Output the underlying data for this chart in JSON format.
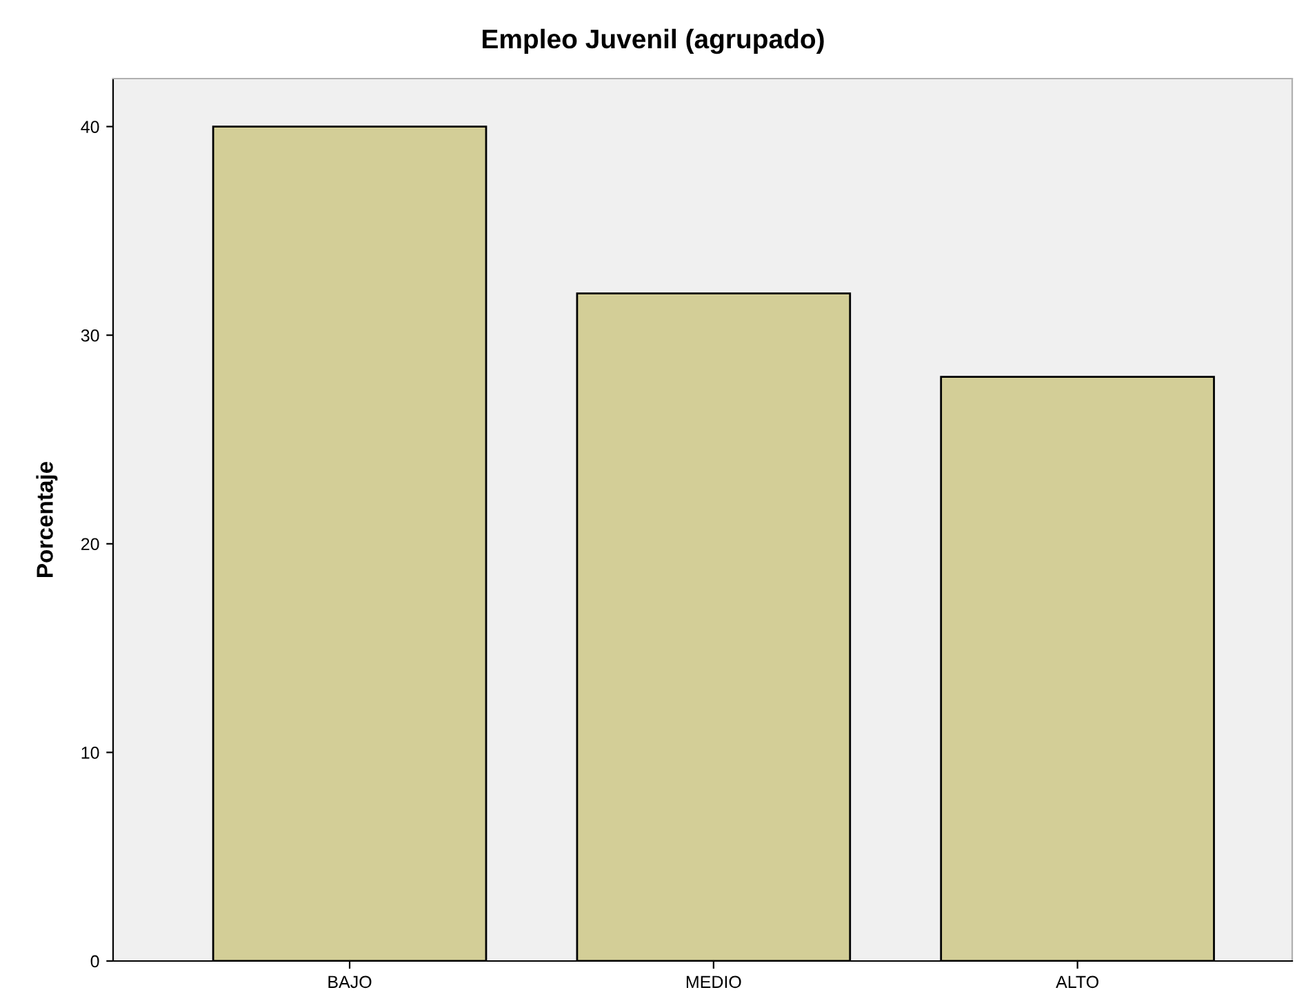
{
  "chart_data": {
    "type": "bar",
    "title": "Empleo Juvenil (agrupado)",
    "ylabel": "Porcentaje",
    "categories": [
      "BAJO",
      "MEDIO",
      "ALTO"
    ],
    "values": [
      40,
      32,
      28
    ],
    "color": "#d3ce97",
    "ylim": [
      0,
      42.3
    ],
    "yticks": [
      0,
      10,
      20,
      30,
      40
    ],
    "grid": false
  }
}
